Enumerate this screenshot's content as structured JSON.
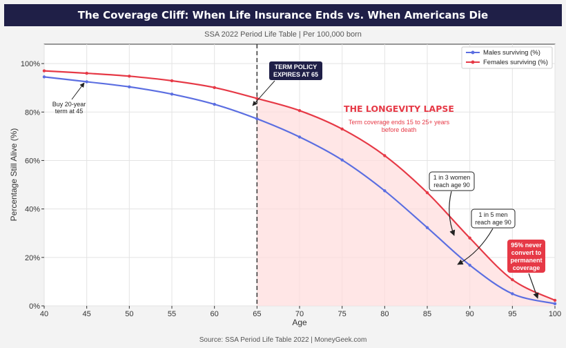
{
  "header": {
    "title": "The Coverage Cliff: When Life Insurance Ends vs. When Americans Die",
    "subtitle": "SSA 2022 Period Life Table  |  Per 100,000 born",
    "source": "Source: SSA Period Life Table 2022  |  MoneyGeek.com"
  },
  "chart_data": {
    "type": "line",
    "xlabel": "Age",
    "ylabel": "Percentage Still Alive (%)",
    "xlim": [
      40,
      100
    ],
    "ylim": [
      0,
      108
    ],
    "x_ticks": [
      "40",
      "45",
      "50",
      "55",
      "60",
      "65",
      "70",
      "75",
      "80",
      "85",
      "90",
      "95",
      "100"
    ],
    "y_ticks": [
      "0%",
      "20%",
      "40%",
      "60%",
      "80%",
      "100%"
    ],
    "x": [
      40,
      45,
      50,
      55,
      60,
      65,
      70,
      75,
      80,
      85,
      90,
      95,
      100
    ],
    "series": [
      {
        "name": "Males surviving (%)",
        "color": "#5b6ee1",
        "values": [
          94.5,
          92.5,
          90.4,
          87.4,
          83.2,
          77.2,
          69.7,
          60.2,
          47.5,
          32.3,
          16.8,
          5.0,
          0.9
        ]
      },
      {
        "name": "Females surviving (%)",
        "color": "#e63946",
        "values": [
          97.0,
          96.0,
          94.8,
          92.9,
          90.1,
          85.6,
          80.6,
          73.0,
          62.0,
          46.7,
          28.0,
          10.8,
          2.3
        ]
      }
    ],
    "legend_position": "top-right",
    "grid": true,
    "marker_line": {
      "x": 65,
      "label": "TERM POLICY EXPIRES AT 65"
    },
    "annotations": {
      "buy": "Buy 20-year term at 45",
      "lapse_title": "THE LONGEVITY LAPSE",
      "lapse_sub": "Term coverage ends 15 to 25+ years before death",
      "women": "1 in 3 women reach age 90",
      "men": "1 in 5 men reach age 90",
      "convert": "95% never convert to permanent coverage"
    }
  }
}
